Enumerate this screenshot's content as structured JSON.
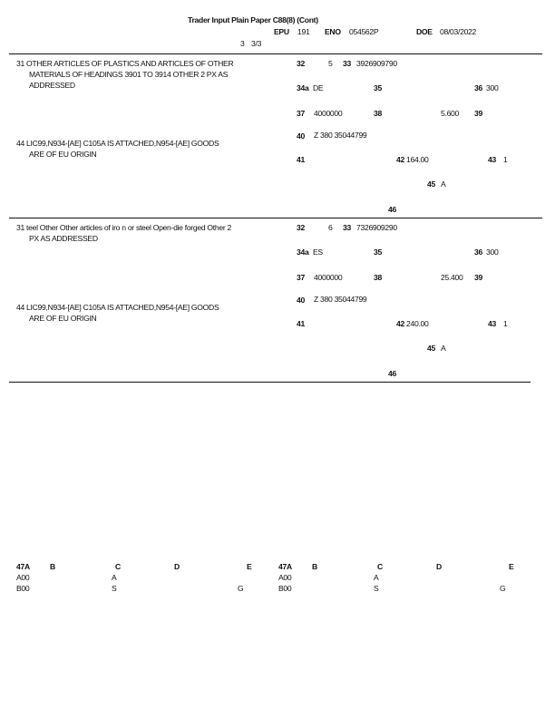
{
  "header": {
    "title": "Trader Input Plain Paper C88(8) (Cont)",
    "epu_label": "EPU",
    "epu": "191",
    "eno_label": "ENO",
    "eno": "054562P",
    "doe_label": "DOE",
    "doe": "08/03/2022",
    "page_a": "3",
    "page_b": "3/3"
  },
  "items": [
    {
      "desc": [
        "31 OTHER ARTICLES OF PLASTICS AND ARTICLES OF OTHER",
        "MATERIALS OF HEADINGS 3901 TO 3914 OTHER 2 PX AS",
        "ADDRESSED"
      ],
      "info": [
        "44 LIC99,N934-[AE] C105A IS ATTACHED,N954-[AE] GOODS",
        "ARE OF EU ORIGIN"
      ],
      "b32": "32",
      "item_no": "5",
      "b33": "33",
      "commodity": "3926909790",
      "b34a": "34a",
      "origin": "DE",
      "b35": "35",
      "b36": "36",
      "pref": "300",
      "b37": "37",
      "procedure": "4000000",
      "b38": "38",
      "net_mass": "5.600",
      "b39": "39",
      "b40": "40",
      "prev_doc": "Z 380 35044799",
      "b41": "41",
      "b42": "42",
      "price": "164.00",
      "b43": "43",
      "method": "1",
      "b45": "45",
      "adj": "A",
      "b46": "46"
    },
    {
      "desc": [
        "31 teel Other Other articles of iro n or steel Open-die forged Other 2",
        "PX AS ADDRESSED"
      ],
      "info": [
        "44 LIC99,N934-[AE] C105A IS ATTACHED,N954-[AE] GOODS",
        "ARE OF EU ORIGIN"
      ],
      "b32": "32",
      "item_no": "6",
      "b33": "33",
      "commodity": "7326909290",
      "b34a": "34a",
      "origin": "ES",
      "b35": "35",
      "b36": "36",
      "pref": "300",
      "b37": "37",
      "procedure": "4000000",
      "b38": "38",
      "net_mass": "25.400",
      "b39": "39",
      "b40": "40",
      "prev_doc": "Z 380 35044799",
      "b41": "41",
      "b42": "42",
      "price": "240.00",
      "b43": "43",
      "method": "1",
      "b45": "45",
      "adj": "A",
      "b46": "46"
    }
  ],
  "footer": {
    "headers": [
      "47A",
      "B",
      "C",
      "D",
      "E"
    ],
    "rows": [
      [
        "A00",
        "A",
        ""
      ],
      [
        "B00",
        "S",
        "G"
      ]
    ]
  }
}
